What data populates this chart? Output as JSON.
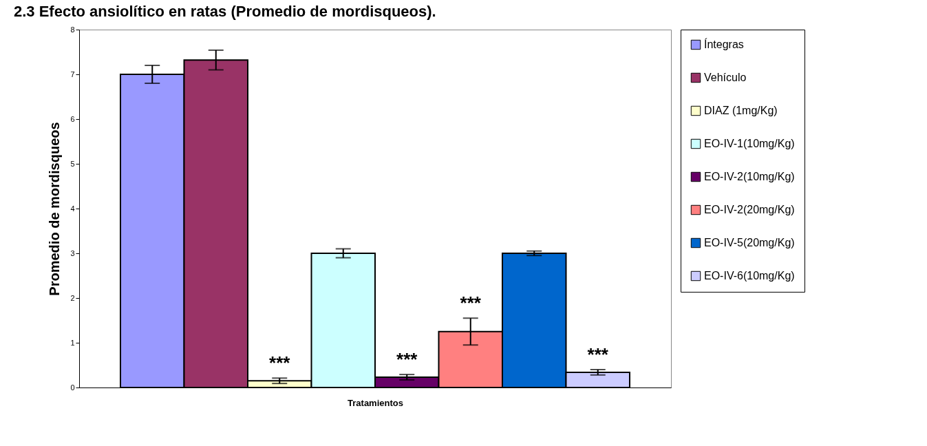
{
  "chart_data": {
    "type": "bar",
    "title": "2.3 Efecto ansiolítico en ratas (Promedio de mordisqueos).",
    "xlabel": "Tratamientos",
    "ylabel": "Promedio de mordisqueos",
    "categories": [
      null
    ],
    "series": [
      {
        "name": "Íntegras",
        "color": "#9999ff",
        "values": [
          7.0
        ],
        "errors": [
          0.2
        ]
      },
      {
        "name": "Vehículo",
        "color": "#993366",
        "values": [
          7.32
        ],
        "errors": [
          0.22
        ]
      },
      {
        "name": "DIAZ (1mg/Kg)",
        "color": "#ffffcc",
        "values": [
          0.15
        ],
        "errors": [
          0.06
        ],
        "value_labels": [
          "***"
        ]
      },
      {
        "name": "EO-IV-1(10mg/Kg)",
        "color": "#ccffff",
        "values": [
          3.0
        ],
        "errors": [
          0.1
        ]
      },
      {
        "name": "EO-IV-2(10mg/Kg)",
        "color": "#660066",
        "values": [
          0.23
        ],
        "errors": [
          0.06
        ],
        "value_labels": [
          "***"
        ]
      },
      {
        "name": "EO-IV-2(20mg/Kg)",
        "color": "#ff8080",
        "values": [
          1.25
        ],
        "errors": [
          0.3
        ],
        "value_labels": [
          "***"
        ]
      },
      {
        "name": "EO-IV-5(20mg/Kg)",
        "color": "#0066cc",
        "values": [
          3.0
        ],
        "errors": [
          0.05
        ]
      },
      {
        "name": "EO-IV-6(10mg/Kg)",
        "color": "#ccccff",
        "values": [
          0.34
        ],
        "errors": [
          0.06
        ],
        "value_labels": [
          "***"
        ]
      }
    ],
    "ylim": [
      0,
      8
    ],
    "yticks": [
      0,
      1,
      2,
      3,
      4,
      5,
      6,
      7,
      8
    ],
    "grid": false,
    "legend": "right",
    "tick_labels": "y"
  }
}
